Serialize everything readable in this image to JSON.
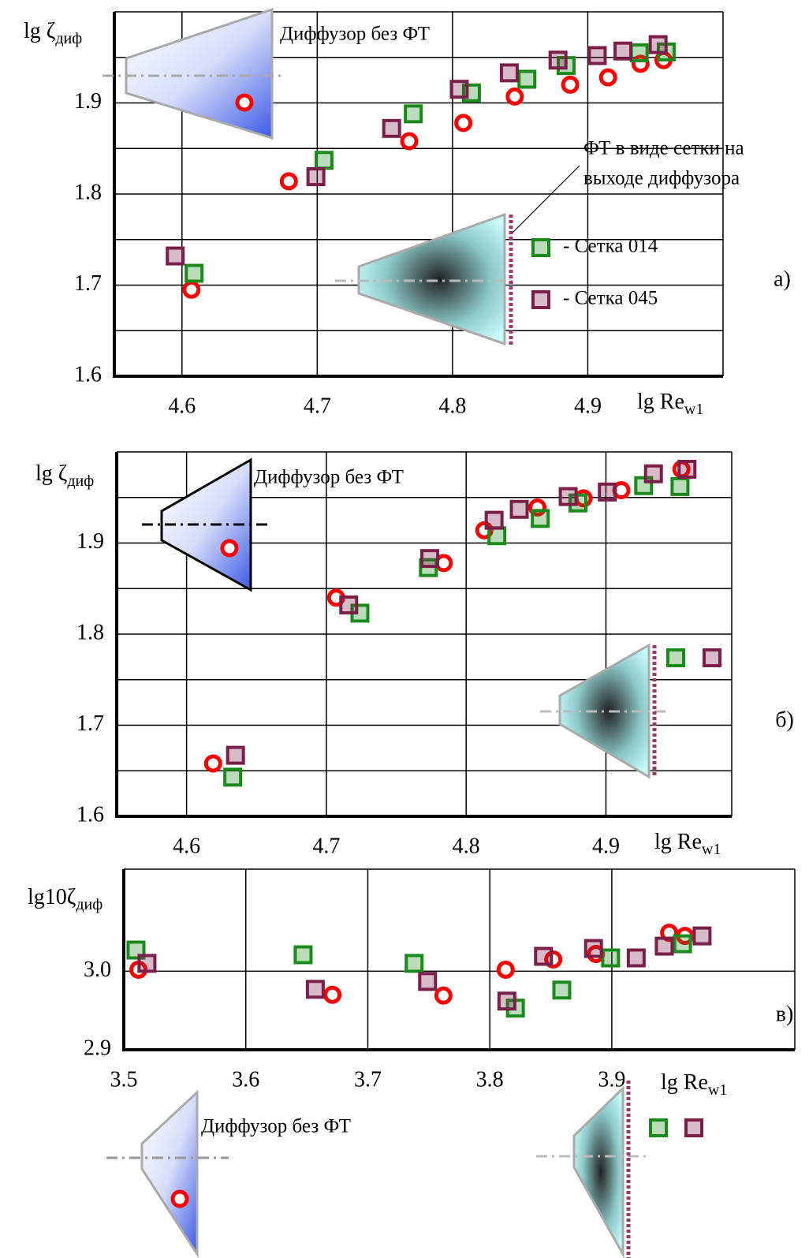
{
  "chart_data": [
    {
      "type": "scatter",
      "panel": "а)",
      "ylabel": "lg ζ",
      "ylabel_sub": "диф",
      "xlabel": "lg Re",
      "xlabel_sub": "w1",
      "xlim": [
        4.55,
        5.0
      ],
      "ylim": [
        1.6,
        2.0
      ],
      "xticks": [
        4.6,
        4.7,
        4.8,
        4.9
      ],
      "yticks": [
        1.6,
        1.7,
        1.8,
        1.9
      ],
      "minor_yticks": [
        1.65,
        1.75,
        1.85,
        1.95
      ],
      "grid": true,
      "legend": true,
      "annotations": [
        "Диффузор без ФТ",
        "ФТ в виде сетки на",
        "выходе диффузора"
      ],
      "series": [
        {
          "color": "#ff0000",
          "marker": "circle",
          "x": [
            4.679,
            4.607,
            4.768,
            4.808,
            4.846,
            4.887,
            4.915,
            4.939,
            4.956
          ],
          "values": [
            1.814,
            1.695,
            1.858,
            1.878,
            1.907,
            1.92,
            1.928,
            1.943,
            1.947
          ]
        },
        {
          "name": "- Сетка 014",
          "color": "#1a8a1a",
          "marker": "square",
          "x": [
            4.609,
            4.705,
            4.771,
            4.814,
            4.855,
            4.884,
            4.938,
            4.958
          ],
          "values": [
            1.713,
            1.837,
            1.888,
            1.911,
            1.926,
            1.941,
            1.955,
            1.956
          ]
        },
        {
          "name": "- Сетка 045",
          "color": "#7a1f4a",
          "marker": "square",
          "x": [
            4.595,
            4.699,
            4.755,
            4.805,
            4.842,
            4.878,
            4.907,
            4.926,
            4.952
          ],
          "values": [
            1.732,
            1.819,
            1.872,
            1.915,
            1.933,
            1.947,
            1.952,
            1.957,
            1.964
          ]
        }
      ]
    },
    {
      "type": "scatter",
      "panel": "б)",
      "ylabel": "lg ζ",
      "ylabel_sub": "диф",
      "xlabel": "lg Re",
      "xlabel_sub": "w1",
      "xlim": [
        4.55,
        4.99
      ],
      "ylim": [
        1.6,
        2.0
      ],
      "xticks": [
        4.6,
        4.7,
        4.8,
        4.9
      ],
      "yticks": [
        1.6,
        1.7,
        1.8,
        1.9
      ],
      "minor_yticks": [
        1.65,
        1.75,
        1.85,
        1.95
      ],
      "grid": true,
      "legend": true,
      "annotations": [
        "Диффузор без ФТ"
      ],
      "series": [
        {
          "color": "#ff0000",
          "marker": "circle",
          "x": [
            4.619,
            4.707,
            4.784,
            4.813,
            4.851,
            4.884,
            4.911,
            4.954
          ],
          "values": [
            1.658,
            1.84,
            1.878,
            1.914,
            1.939,
            1.949,
            1.958,
            1.981
          ]
        },
        {
          "color": "#1a8a1a",
          "marker": "square",
          "x": [
            4.633,
            4.724,
            4.773,
            4.822,
            4.853,
            4.88,
            4.927,
            4.953
          ],
          "values": [
            1.643,
            1.823,
            1.873,
            1.908,
            1.927,
            1.944,
            1.963,
            1.962
          ]
        },
        {
          "color": "#7a1f4a",
          "marker": "square",
          "x": [
            4.635,
            4.716,
            4.774,
            4.82,
            4.838,
            4.873,
            4.901,
            4.934,
            4.958
          ],
          "values": [
            1.667,
            1.832,
            1.883,
            1.925,
            1.937,
            1.951,
            1.956,
            1.976,
            1.981
          ]
        }
      ]
    },
    {
      "type": "scatter",
      "panel": "в)",
      "ylabel": "lg10ζ",
      "ylabel_sub": "диф",
      "xlabel": "lg Re",
      "xlabel_sub": "w1",
      "xlim": [
        3.5,
        4.05
      ],
      "ylim": [
        2.9,
        3.13
      ],
      "xticks": [
        3.5,
        3.6,
        3.7,
        3.8,
        3.9
      ],
      "yticks": [
        2.9,
        {
          "value": 3,
          "label": "3.0"
        }
      ],
      "minor_yticks": [],
      "grid": true,
      "legend": true,
      "annotations": [
        "Диффузор без ФТ"
      ],
      "series": [
        {
          "color": "#ff0000",
          "marker": "circle",
          "x": [
            3.512,
            3.671,
            3.762,
            3.813,
            3.852,
            3.887,
            3.947,
            3.96
          ],
          "values": [
            3.002,
            2.97,
            2.969,
            3.002,
            3.015,
            3.022,
            3.049,
            3.045
          ]
        },
        {
          "color": "#1a8a1a",
          "marker": "square",
          "x": [
            3.51,
            3.647,
            3.738,
            3.821,
            3.859,
            3.899,
            3.958
          ],
          "values": [
            3.027,
            3.021,
            3.01,
            2.953,
            2.976,
            3.017,
            3.035
          ]
        },
        {
          "color": "#7a1f4a",
          "marker": "square",
          "x": [
            3.519,
            3.657,
            3.749,
            3.814,
            3.844,
            3.885,
            3.92,
            3.943,
            3.974
          ],
          "values": [
            3.01,
            2.977,
            2.987,
            2.962,
            3.019,
            3.029,
            3.017,
            3.032,
            3.045
          ]
        }
      ]
    }
  ]
}
